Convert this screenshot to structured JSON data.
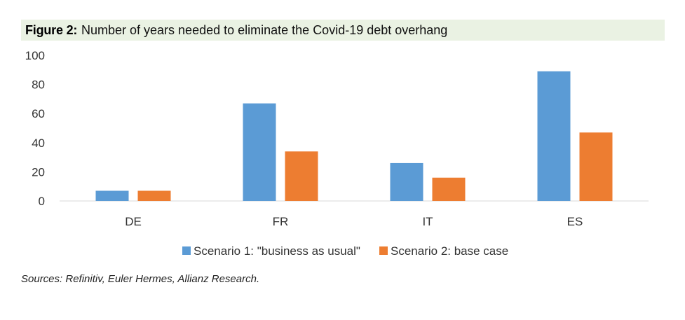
{
  "figure_label": "Figure 2:",
  "chart_data": {
    "type": "bar",
    "title": "Number of years needed to eliminate the Covid-19 debt overhang",
    "categories": [
      "DE",
      "FR",
      "IT",
      "ES"
    ],
    "series": [
      {
        "name": "Scenario 1: \"business as usual\"",
        "color": "#5b9bd5",
        "values": [
          7,
          67,
          26,
          89
        ]
      },
      {
        "name": "Scenario 2: base case",
        "color": "#ed7d31",
        "values": [
          7,
          34,
          16,
          47
        ]
      }
    ],
    "yticks": [
      "0",
      "20",
      "40",
      "60",
      "80",
      "100"
    ],
    "ylim": [
      0,
      100
    ],
    "grid": false,
    "legend": "bottom"
  },
  "source": "Sources: Refinitiv, Euler Hermes, Allianz Research."
}
